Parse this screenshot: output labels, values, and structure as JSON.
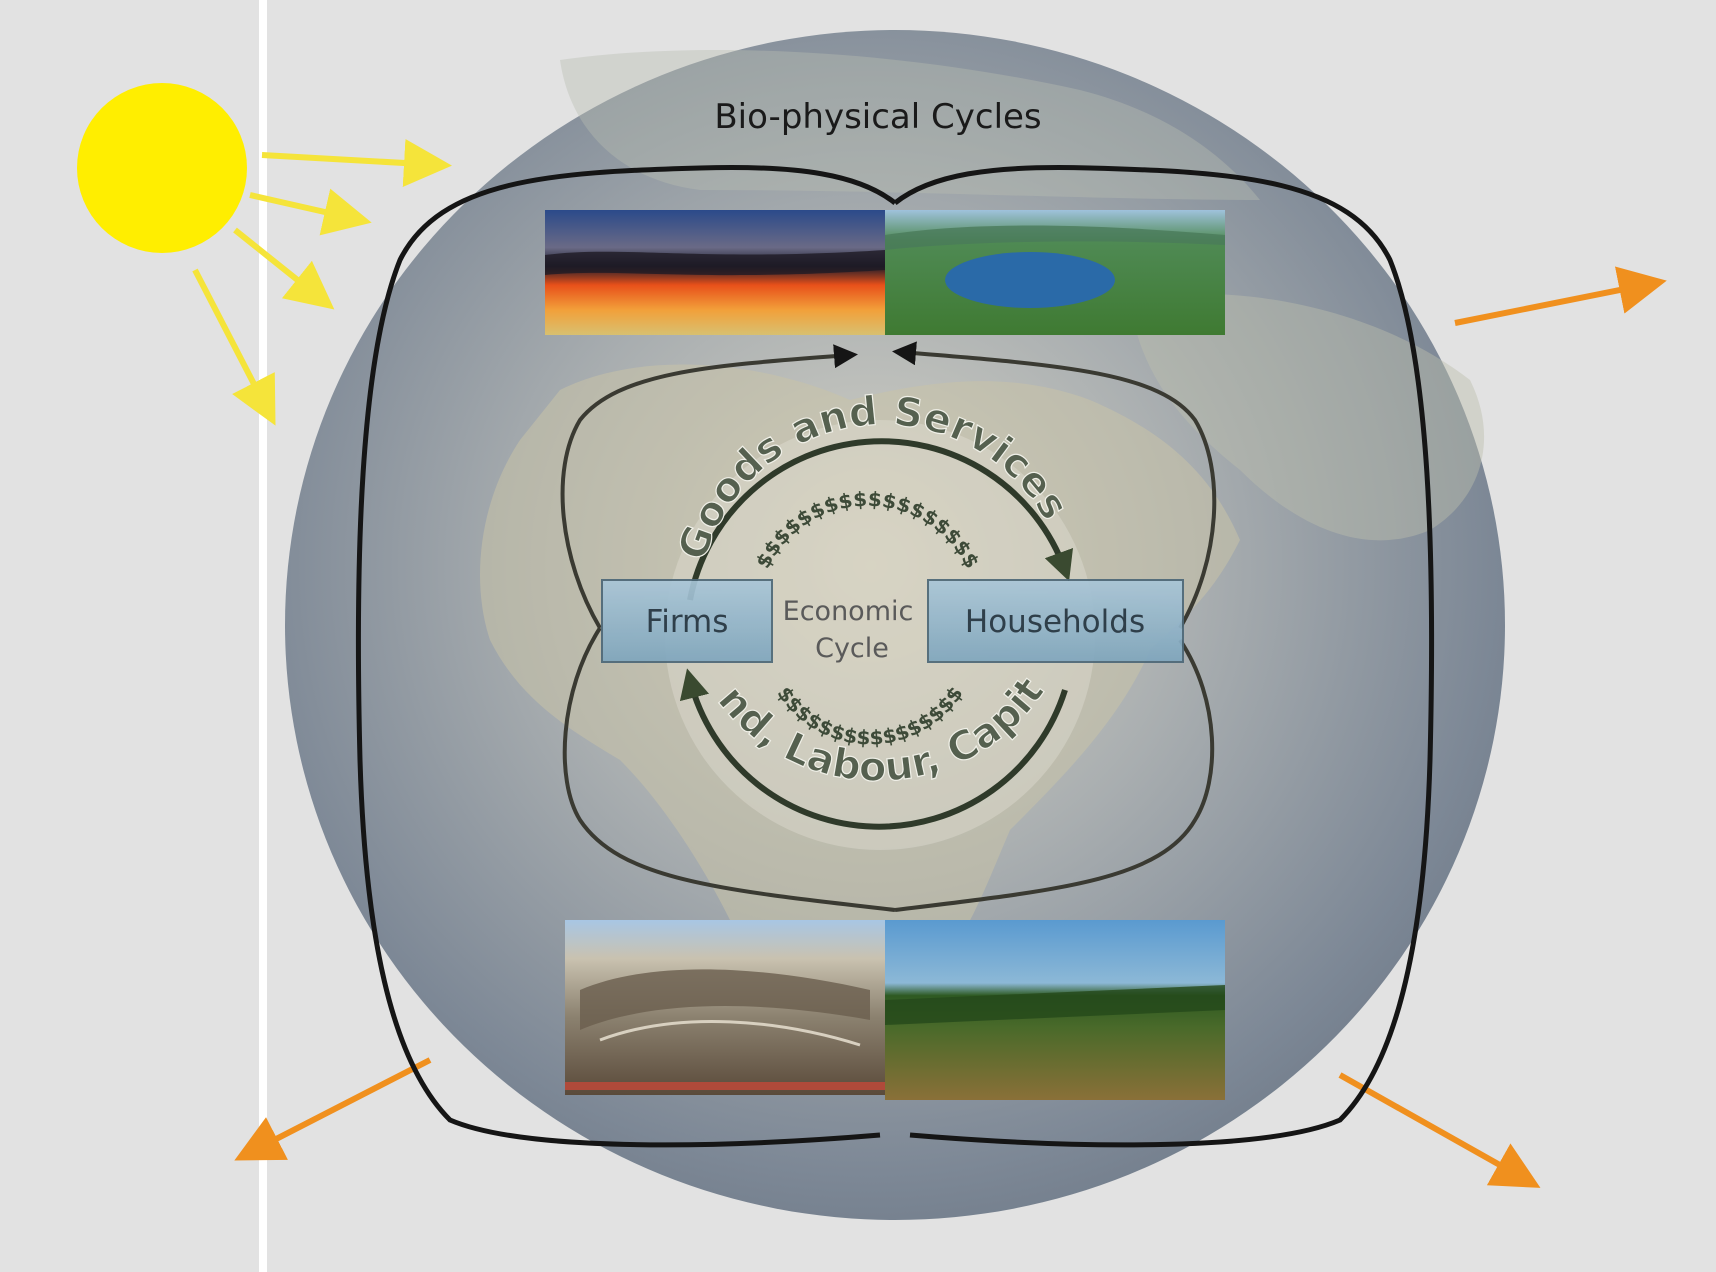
{
  "title": "Bio-physical Cycles",
  "firms_label": "Firms",
  "households_label": "Households",
  "center_line1": "Economic",
  "center_line2": "Cycle",
  "top_arc_label": "Goods and Services",
  "bottom_arc_label": "Land, Labour, Capital",
  "money_string": "$$$$$$$$$$$$$$$$$$$$",
  "colors": {
    "sun": "#ffee00",
    "sun_rays": "#f5e43a",
    "outgoing_heat": "#f0901e",
    "cycle_lines": "#151515"
  }
}
